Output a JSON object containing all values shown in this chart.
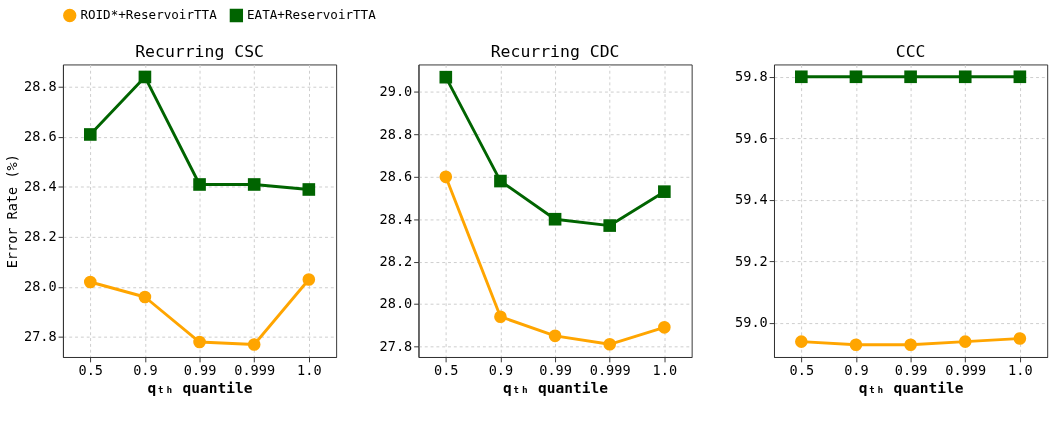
{
  "chart_data": [
    {
      "type": "line",
      "title": "Recurring CSC",
      "xlabel": "qₜₕ quantile",
      "ylabel": "Error Rate (%)",
      "categories": [
        "0.5",
        "0.9",
        "0.99",
        "0.999",
        "1.0"
      ],
      "ylim": [
        27.72,
        28.89
      ],
      "yticks": [
        27.8,
        {
          "value": 28,
          "label": "28.0"
        },
        28.2,
        28.4,
        28.6,
        28.8
      ],
      "grid": true,
      "legend": "top",
      "series": [
        {
          "name": "ROID*+ReservoirTTA",
          "color": "#ffa500",
          "marker": "circle",
          "values": [
            28.02,
            27.96,
            27.78,
            27.77,
            28.03
          ]
        },
        {
          "name": "EATA+ReservoirTTA",
          "color": "#006400",
          "marker": "square",
          "values": [
            28.61,
            28.84,
            28.41,
            28.41,
            28.39
          ]
        }
      ]
    },
    {
      "type": "line",
      "title": "Recurring CDC",
      "xlabel": "qₜₕ quantile",
      "categories": [
        "0.5",
        "0.9",
        "0.99",
        "0.999",
        "1.0"
      ],
      "ylim": [
        27.75,
        29.13
      ],
      "yticks": [
        27.8,
        {
          "value": 28,
          "label": "28.0"
        },
        28.2,
        28.4,
        28.6,
        28.8,
        {
          "value": 29,
          "label": "29.0"
        }
      ],
      "grid": true,
      "legend": "top",
      "series": [
        {
          "name": "ROID*+ReservoirTTA",
          "color": "#ffa500",
          "marker": "circle",
          "values": [
            28.6,
            27.94,
            27.85,
            27.81,
            27.89
          ]
        },
        {
          "name": "EATA+ReservoirTTA",
          "color": "#006400",
          "marker": "square",
          "values": [
            29.07,
            28.58,
            28.4,
            28.37,
            28.53
          ]
        }
      ]
    },
    {
      "type": "line",
      "title": "CCC",
      "xlabel": "qₜₕ quantile",
      "categories": [
        "0.5",
        "0.9",
        "0.99",
        "0.999",
        "1.0"
      ],
      "ylim": [
        58.89,
        59.84
      ],
      "yticks": [
        {
          "value": 59,
          "label": "59.0"
        },
        59.2,
        59.4,
        59.6,
        59.8
      ],
      "grid": true,
      "legend": "top",
      "series": [
        {
          "name": "ROID*+ReservoirTTA",
          "color": "#ffa500",
          "marker": "circle",
          "values": [
            58.94,
            58.93,
            58.93,
            58.94,
            58.95
          ]
        },
        {
          "name": "EATA+ReservoirTTA",
          "color": "#006400",
          "marker": "square",
          "values": [
            59.8,
            59.8,
            59.8,
            59.8,
            59.8
          ]
        }
      ]
    }
  ]
}
